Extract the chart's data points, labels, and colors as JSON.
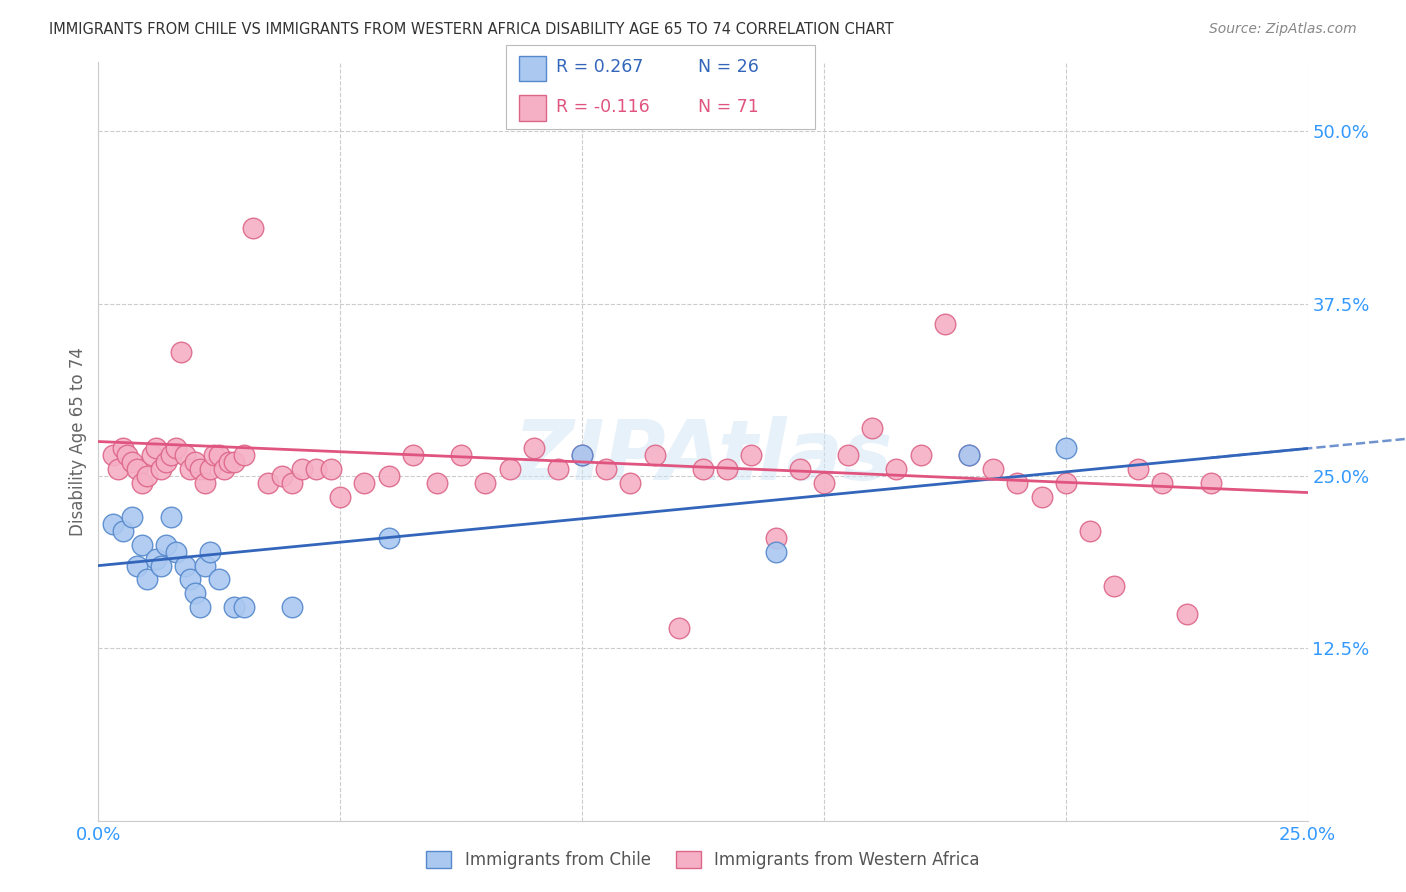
{
  "title": "IMMIGRANTS FROM CHILE VS IMMIGRANTS FROM WESTERN AFRICA DISABILITY AGE 65 TO 74 CORRELATION CHART",
  "source": "Source: ZipAtlas.com",
  "ylabel": "Disability Age 65 to 74",
  "xlim": [
    0.0,
    0.25
  ],
  "ylim": [
    0.0,
    0.55
  ],
  "xtick_positions": [
    0.0,
    0.05,
    0.1,
    0.15,
    0.2,
    0.25
  ],
  "xticklabels": [
    "0.0%",
    "",
    "",
    "",
    "",
    "25.0%"
  ],
  "ytick_positions": [
    0.0,
    0.125,
    0.25,
    0.375,
    0.5
  ],
  "yticklabels": [
    "",
    "12.5%",
    "25.0%",
    "37.5%",
    "50.0%"
  ],
  "chile_color": "#aac8f0",
  "chile_edge_color": "#5588cc",
  "chile_line_color": "#3366bb",
  "wa_color": "#f5b0c5",
  "wa_edge_color": "#dd6688",
  "wa_line_color": "#e05580",
  "R_chile": 0.267,
  "N_chile": 26,
  "R_wa": -0.116,
  "N_wa": 71,
  "background_color": "#ffffff",
  "grid_color": "#cccccc",
  "tick_color": "#3399ff",
  "ylabel_color": "#666666",
  "title_color": "#333333",
  "source_color": "#888888",
  "watermark": "ZIPAtlas",
  "watermark_color": "#d0e4f5",
  "legend_label_chile": "Immigrants from Chile",
  "legend_label_wa": "Immigrants from Western Africa",
  "chile_x": [
    0.003,
    0.005,
    0.007,
    0.008,
    0.009,
    0.01,
    0.012,
    0.013,
    0.014,
    0.015,
    0.016,
    0.018,
    0.019,
    0.02,
    0.021,
    0.022,
    0.023,
    0.025,
    0.028,
    0.03,
    0.04,
    0.06,
    0.1,
    0.14,
    0.18,
    0.2
  ],
  "chile_y": [
    0.215,
    0.21,
    0.22,
    0.185,
    0.2,
    0.175,
    0.19,
    0.185,
    0.2,
    0.22,
    0.195,
    0.185,
    0.175,
    0.165,
    0.155,
    0.185,
    0.195,
    0.175,
    0.155,
    0.155,
    0.155,
    0.205,
    0.265,
    0.195,
    0.265,
    0.27
  ],
  "wa_x": [
    0.003,
    0.004,
    0.005,
    0.006,
    0.007,
    0.008,
    0.009,
    0.01,
    0.011,
    0.012,
    0.013,
    0.014,
    0.015,
    0.016,
    0.017,
    0.018,
    0.019,
    0.02,
    0.021,
    0.022,
    0.023,
    0.024,
    0.025,
    0.026,
    0.027,
    0.028,
    0.03,
    0.032,
    0.035,
    0.038,
    0.04,
    0.042,
    0.045,
    0.048,
    0.05,
    0.055,
    0.06,
    0.065,
    0.07,
    0.075,
    0.08,
    0.085,
    0.09,
    0.095,
    0.1,
    0.105,
    0.11,
    0.115,
    0.12,
    0.125,
    0.13,
    0.135,
    0.14,
    0.145,
    0.15,
    0.155,
    0.16,
    0.165,
    0.17,
    0.175,
    0.18,
    0.185,
    0.19,
    0.195,
    0.2,
    0.205,
    0.21,
    0.215,
    0.22,
    0.225,
    0.23
  ],
  "wa_y": [
    0.265,
    0.255,
    0.27,
    0.265,
    0.26,
    0.255,
    0.245,
    0.25,
    0.265,
    0.27,
    0.255,
    0.26,
    0.265,
    0.27,
    0.34,
    0.265,
    0.255,
    0.26,
    0.255,
    0.245,
    0.255,
    0.265,
    0.265,
    0.255,
    0.26,
    0.26,
    0.265,
    0.43,
    0.245,
    0.25,
    0.245,
    0.255,
    0.255,
    0.255,
    0.235,
    0.245,
    0.25,
    0.265,
    0.245,
    0.265,
    0.245,
    0.255,
    0.27,
    0.255,
    0.265,
    0.255,
    0.245,
    0.265,
    0.14,
    0.255,
    0.255,
    0.265,
    0.205,
    0.255,
    0.245,
    0.265,
    0.285,
    0.255,
    0.265,
    0.36,
    0.265,
    0.255,
    0.245,
    0.235,
    0.245,
    0.21,
    0.17,
    0.255,
    0.245,
    0.15,
    0.245
  ],
  "chile_line_x0": 0.0,
  "chile_line_y0": 0.185,
  "chile_line_x1": 0.25,
  "chile_line_y1": 0.27,
  "wa_line_x0": 0.0,
  "wa_line_y0": 0.275,
  "wa_line_x1": 0.25,
  "wa_line_y1": 0.238
}
